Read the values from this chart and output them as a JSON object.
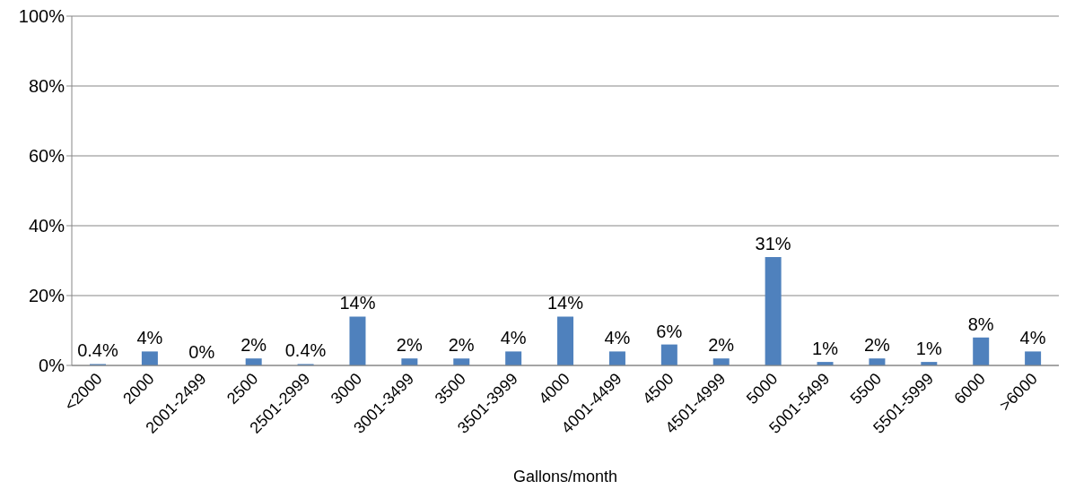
{
  "chart_data": {
    "type": "bar",
    "xlabel": "Gallons/month",
    "categories": [
      "<2000",
      "2000",
      "2001-2499",
      "2500",
      "2501-2999",
      "3000",
      "3001-3499",
      "3500",
      "3501-3999",
      "4000",
      "4001-4499",
      "4500",
      "4501-4999",
      "5000",
      "5001-5499",
      "5500",
      "5501-5999",
      "6000",
      ">6000"
    ],
    "values": [
      0.4,
      4,
      0,
      2,
      0.4,
      14,
      2,
      2,
      4,
      14,
      4,
      6,
      2,
      31,
      1,
      2,
      1,
      8,
      4
    ],
    "value_labels": [
      "0.4%",
      "4%",
      "0%",
      "2%",
      "0.4%",
      "14%",
      "2%",
      "2%",
      "4%",
      "14%",
      "4%",
      "6%",
      "2%",
      "31%",
      "1%",
      "2%",
      "1%",
      "8%",
      "4%"
    ],
    "color": "#4f81bd",
    "ylim": [
      0,
      100
    ],
    "yticks": [
      {
        "value": 0,
        "label": "0%"
      },
      {
        "value": 20,
        "label": "20%"
      },
      {
        "value": 40,
        "label": "40%"
      },
      {
        "value": 60,
        "label": "60%"
      },
      {
        "value": 80,
        "label": "80%"
      },
      {
        "value": 100,
        "label": "100%"
      }
    ],
    "grid": "y",
    "legend": false
  }
}
